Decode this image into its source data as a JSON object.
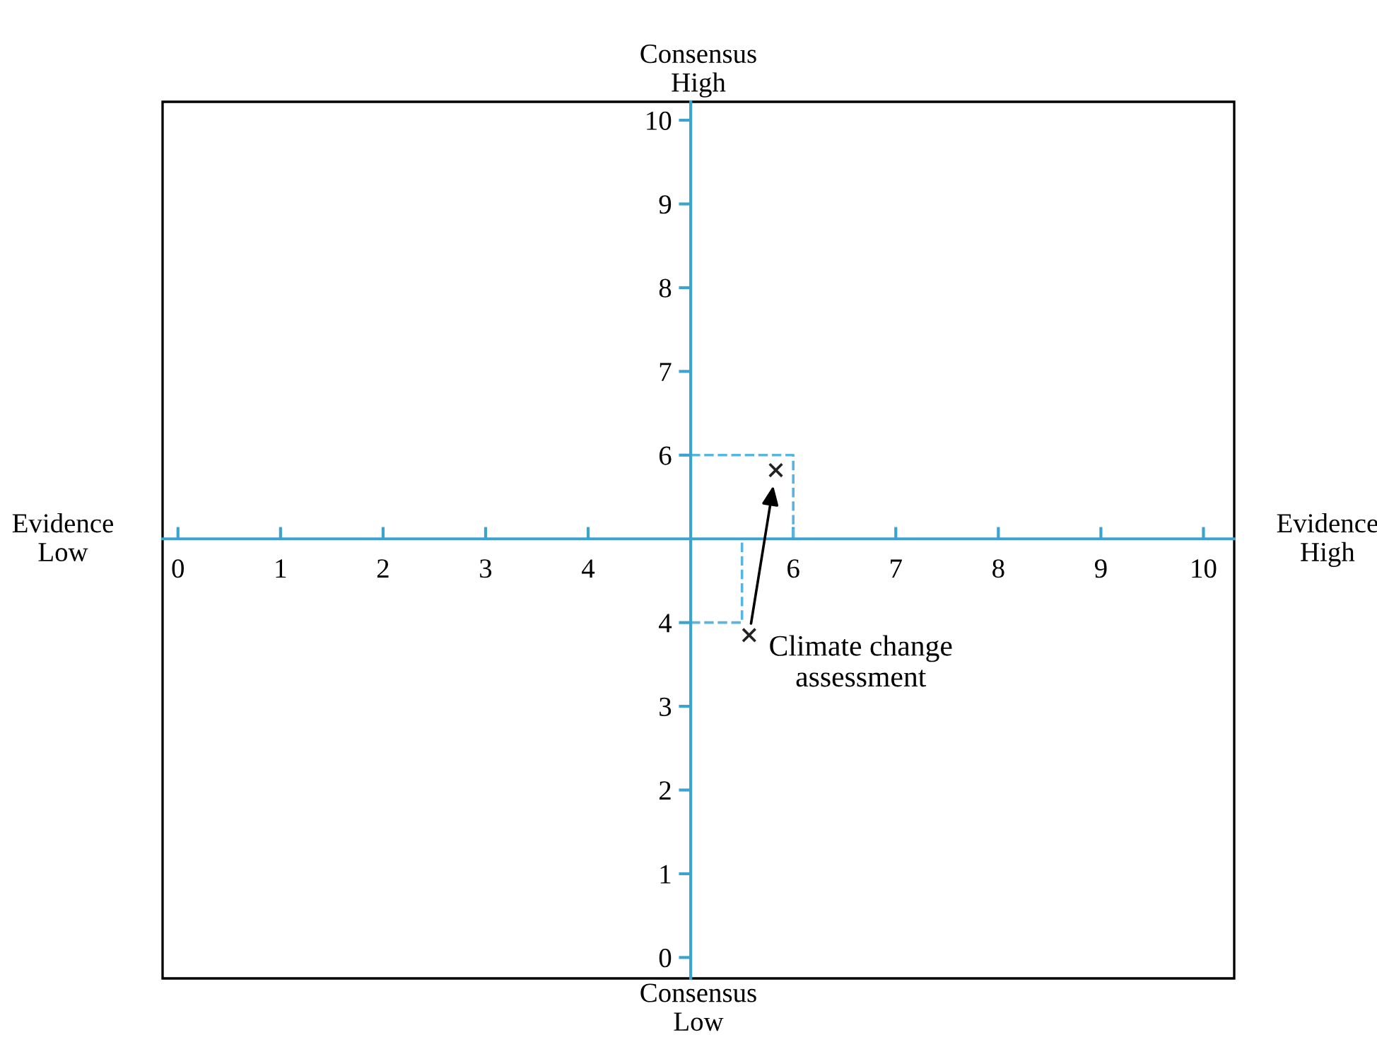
{
  "chart_data": {
    "type": "scatter",
    "xlim": [
      -0.15,
      10.3
    ],
    "ylim": [
      -0.25,
      10.22
    ],
    "xticks": [
      0,
      1,
      2,
      3,
      4,
      6,
      7,
      8,
      9,
      10
    ],
    "yticks": [
      0,
      1,
      2,
      3,
      4,
      6,
      7,
      8,
      9,
      10
    ],
    "grid": false,
    "series": [
      {
        "type": "line",
        "color": "#5ab4e0",
        "line_style": "dashed",
        "marker": "none",
        "x": [
          5,
          5.5,
          5.5
        ],
        "values": [
          4,
          4,
          5
        ]
      },
      {
        "type": "line",
        "color": "#5ab4e0",
        "line_style": "dashed",
        "marker": "none",
        "x": [
          5,
          6,
          6
        ],
        "values": [
          6,
          6,
          5
        ]
      },
      {
        "color": "#222222",
        "marker": "cross",
        "x": [
          5.57,
          5.83
        ],
        "values": [
          3.85,
          5.82
        ]
      }
    ],
    "annotations": [
      "Evidence\nLow",
      "Evidence\nHigh",
      "Consensus\nHigh",
      "Consensus\nLow",
      {
        "text": "Climate change\nassessment",
        "x": 5.57,
        "y": 3.85
      }
    ]
  }
}
